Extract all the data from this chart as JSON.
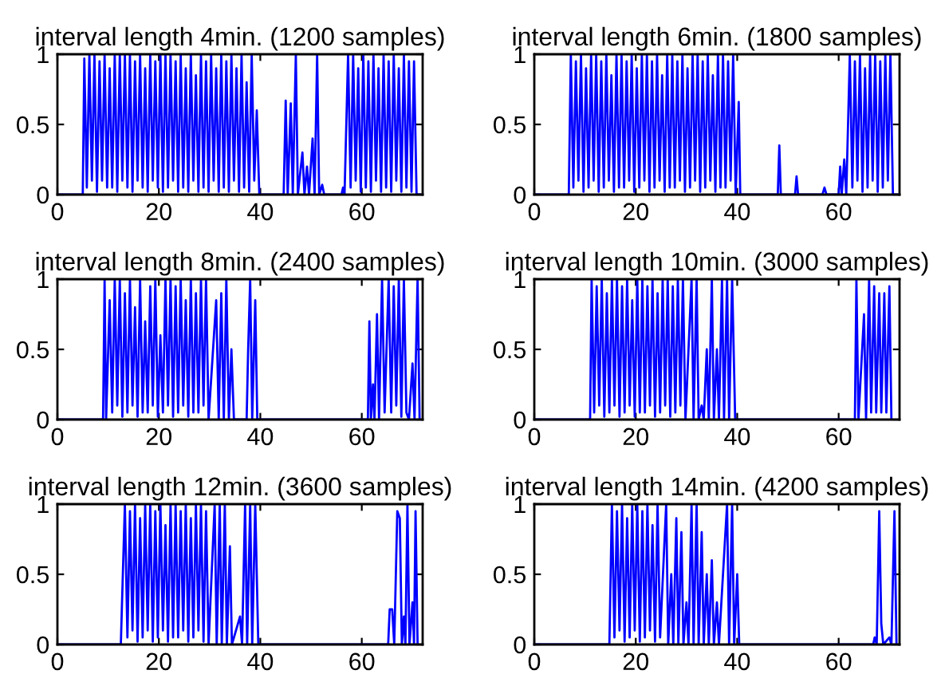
{
  "chart_data": [
    {
      "type": "line",
      "title": "interval length 4min. (1200 samples)",
      "xlim": [
        0,
        72
      ],
      "ylim": [
        0,
        1
      ],
      "xticks": [
        0,
        20,
        40,
        60
      ],
      "yticks": [
        0,
        0.5,
        1
      ],
      "grid": false,
      "legend": false,
      "series": [
        {
          "color": "#0000ff",
          "x": [
            0,
            5,
            5.3,
            5.8,
            6.3,
            6.8,
            7.3,
            7.8,
            8.3,
            8.8,
            9.3,
            9.8,
            10.3,
            10.8,
            11.3,
            11.8,
            12.3,
            12.8,
            13.3,
            13.8,
            14.3,
            14.8,
            15.3,
            15.8,
            16.3,
            16.8,
            17.3,
            17.8,
            18.3,
            18.8,
            19.3,
            19.8,
            20.3,
            20.8,
            21.3,
            21.8,
            22.3,
            22.8,
            23.3,
            23.8,
            24.3,
            24.8,
            25.3,
            25.8,
            26.3,
            26.8,
            27.3,
            27.8,
            28.3,
            28.8,
            29.3,
            29.8,
            30.3,
            30.8,
            31.3,
            31.8,
            32.3,
            32.8,
            33.3,
            33.8,
            34.3,
            34.8,
            35.3,
            35.8,
            36.3,
            36.8,
            37.3,
            37.8,
            38.3,
            38.8,
            39.3,
            39.8,
            44.6,
            45,
            45.4,
            46,
            46.4,
            47,
            47.4,
            48.3,
            48.7,
            49.2,
            49.6,
            50.3,
            50.7,
            51.2,
            51.6,
            52.2,
            52.6,
            56,
            56.3,
            56.6,
            57.3,
            57.8,
            58.3,
            58.8,
            59.3,
            59.8,
            60.3,
            60.8,
            61.3,
            61.8,
            62.3,
            62.8,
            63.3,
            63.8,
            64.3,
            64.8,
            65.3,
            65.8,
            66.3,
            66.8,
            67.3,
            67.8,
            68.3,
            68.8,
            69.3,
            69.8,
            70.3,
            70.8,
            71.5
          ],
          "values": [
            0,
            0,
            0.97,
            0.05,
            1,
            0.1,
            1,
            0.02,
            0.95,
            0.1,
            1,
            0.05,
            0.9,
            0.05,
            1,
            0.02,
            1,
            0.1,
            1,
            0.05,
            1,
            0.02,
            0.95,
            0.1,
            1,
            0.05,
            0.9,
            0.02,
            1,
            0.1,
            0.95,
            0.05,
            1,
            0.02,
            1,
            0.05,
            1,
            0.1,
            0.95,
            0.02,
            1,
            0.05,
            0.9,
            0.02,
            1,
            0.1,
            0.85,
            0.02,
            1,
            0.05,
            0.95,
            0.02,
            1,
            0.1,
            0.9,
            0.02,
            1,
            0.05,
            0.95,
            0.02,
            1,
            0.1,
            0.9,
            0.02,
            1,
            0.05,
            0.8,
            0.02,
            1,
            0.1,
            0.6,
            0,
            0,
            0.67,
            0,
            0.65,
            0,
            1,
            0,
            0.3,
            0,
            0.2,
            0,
            0.4,
            0,
            1,
            0,
            0.07,
            0,
            0,
            0.05,
            0,
            1,
            0.05,
            1,
            0.1,
            0.9,
            0.02,
            1,
            0.05,
            0.95,
            0.02,
            1,
            0.1,
            0.9,
            0.02,
            1,
            0.05,
            0.95,
            0.02,
            1,
            0.1,
            0.9,
            0.02,
            1,
            0.05,
            0.95,
            0.02,
            0.95,
            0,
            0
          ]
        }
      ]
    },
    {
      "type": "line",
      "title": "interval length 6min. (1800 samples)",
      "xlim": [
        0,
        72
      ],
      "ylim": [
        0,
        1
      ],
      "xticks": [
        0,
        20,
        40,
        60
      ],
      "yticks": [
        0,
        0.5,
        1
      ],
      "grid": false,
      "legend": false,
      "series": [
        {
          "color": "#0000ff",
          "x": [
            0,
            6.8,
            7.2,
            7.7,
            8.2,
            8.7,
            9.2,
            9.7,
            10.2,
            10.7,
            11.2,
            11.7,
            12.2,
            12.7,
            13.2,
            13.7,
            14.2,
            14.7,
            15.2,
            15.7,
            16.2,
            16.7,
            17.2,
            17.7,
            18.2,
            18.7,
            19.2,
            19.7,
            20.2,
            20.7,
            21.2,
            21.7,
            22.2,
            22.7,
            23.2,
            23.7,
            24.2,
            24.7,
            25.2,
            25.7,
            26.2,
            26.7,
            27.2,
            27.7,
            28.2,
            28.7,
            29.2,
            29.7,
            30.2,
            30.7,
            31.2,
            31.7,
            32.2,
            32.7,
            33.2,
            33.7,
            34.2,
            34.7,
            35.2,
            35.7,
            36.2,
            36.7,
            37.2,
            37.7,
            38.2,
            38.7,
            39.2,
            39.7,
            40.3,
            40.6,
            48,
            48.3,
            48.6,
            51.4,
            51.7,
            52,
            56.8,
            57.2,
            57.6,
            60,
            60.3,
            60.6,
            61.1,
            61.5,
            62.2,
            62.7,
            63.2,
            63.7,
            64.2,
            64.7,
            65.2,
            65.7,
            66.2,
            66.7,
            67.2,
            67.7,
            68.2,
            68.7,
            69.2,
            69.7,
            70.2,
            70.7,
            71.5
          ],
          "values": [
            0,
            0,
            1,
            0.05,
            0.95,
            0.1,
            1,
            0.02,
            0.9,
            0.05,
            1,
            0.1,
            1,
            0.02,
            0.95,
            0.05,
            1,
            0.1,
            0.85,
            0.02,
            1,
            0.05,
            1,
            0.05,
            0.95,
            0.1,
            1,
            0.02,
            0.9,
            0.05,
            1,
            0.1,
            1,
            0.02,
            0.95,
            0.05,
            1,
            0.1,
            0.85,
            0.02,
            1,
            0.05,
            1,
            0.05,
            0.95,
            0.1,
            1,
            0.02,
            0.9,
            0.05,
            1,
            0.1,
            1,
            0.02,
            0.95,
            0.05,
            1,
            0.1,
            0.85,
            0.02,
            1,
            0.05,
            1,
            0.05,
            0.95,
            0.1,
            1,
            0,
            0.66,
            0,
            0,
            0.35,
            0,
            0,
            0.13,
            0,
            0,
            0.05,
            0,
            0,
            0.2,
            0,
            0.25,
            0,
            1,
            0.05,
            0.95,
            0.1,
            1,
            0.02,
            0.9,
            0.05,
            1,
            0.1,
            1,
            0.02,
            0.95,
            0.05,
            1,
            0.1,
            1,
            0,
            0
          ]
        }
      ]
    },
    {
      "type": "line",
      "title": "interval length 8min. (2400 samples)",
      "xlim": [
        0,
        72
      ],
      "ylim": [
        0,
        1
      ],
      "xticks": [
        0,
        20,
        40,
        60
      ],
      "yticks": [
        0,
        0.5,
        1
      ],
      "grid": false,
      "legend": false,
      "series": [
        {
          "color": "#0000ff",
          "x": [
            0,
            9,
            9.3,
            9.6,
            10.3,
            10.8,
            11.3,
            11.8,
            12.3,
            12.8,
            13.3,
            13.8,
            14.3,
            14.8,
            15.3,
            15.8,
            16.3,
            16.8,
            17.3,
            17.8,
            18.3,
            18.8,
            19.3,
            19.8,
            20.3,
            20.8,
            21.3,
            21.8,
            22.3,
            22.8,
            23.3,
            23.8,
            24.3,
            24.8,
            25.3,
            25.8,
            26.3,
            26.8,
            27.3,
            27.8,
            28.3,
            28.8,
            29.3,
            29.8,
            31.3,
            31.8,
            32.3,
            32.8,
            33.3,
            33.8,
            34.3,
            34.8,
            37.3,
            37.6,
            38,
            38.4,
            39,
            39.4,
            61.2,
            61.5,
            61.8,
            62.2,
            62.5,
            63,
            63.4,
            64,
            64.5,
            65.3,
            65.8,
            66.3,
            66.8,
            67.3,
            67.8,
            68.3,
            68.8,
            69.3,
            70,
            70.4,
            71,
            71.4
          ],
          "values": [
            0,
            0,
            1,
            0,
            0.85,
            0.05,
            1,
            0.1,
            1,
            0.02,
            0.9,
            0.05,
            1,
            0.1,
            0.8,
            0.02,
            1,
            0.05,
            0.7,
            0.05,
            0.95,
            0.1,
            1,
            0.02,
            0.6,
            0.05,
            1,
            0.1,
            1,
            0.02,
            0.95,
            0.05,
            1,
            0.1,
            0.85,
            0.02,
            1,
            0.05,
            0.9,
            0.05,
            1,
            0.1,
            1,
            0,
            0.85,
            0,
            0.9,
            0,
            1,
            0,
            0.5,
            0,
            0,
            0.5,
            1,
            0,
            0.85,
            0,
            0,
            0.7,
            0,
            0.25,
            0,
            0.75,
            0,
            1,
            0.05,
            1,
            0.05,
            0.95,
            0.1,
            1,
            0.02,
            1,
            0.05,
            0,
            0.4,
            0,
            1,
            0
          ]
        }
      ]
    },
    {
      "type": "line",
      "title": "interval length 10min. (3000 samples)",
      "xlim": [
        0,
        72
      ],
      "ylim": [
        0,
        1
      ],
      "xticks": [
        0,
        20,
        40,
        60
      ],
      "yticks": [
        0,
        0.5,
        1
      ],
      "grid": false,
      "legend": false,
      "series": [
        {
          "color": "#0000ff",
          "x": [
            0,
            11,
            11.3,
            11.8,
            12.3,
            12.8,
            13.3,
            13.8,
            14.3,
            14.8,
            15.3,
            15.8,
            16.3,
            16.8,
            17.3,
            17.8,
            18.3,
            18.8,
            19.3,
            19.8,
            20.3,
            20.8,
            21.3,
            21.8,
            22.3,
            22.8,
            23.3,
            23.8,
            24.3,
            24.8,
            25.3,
            25.8,
            26.3,
            26.8,
            27.3,
            27.8,
            28.3,
            28.8,
            29.3,
            29.8,
            31,
            31.4,
            32,
            32.4,
            33,
            33.4,
            34,
            34.4,
            35,
            35.4,
            36,
            36.4,
            37,
            37.4,
            38,
            38.4,
            39,
            39.6,
            63.2,
            63.5,
            63.9,
            65,
            65.4,
            66,
            66.4,
            67,
            67.4,
            68,
            68.4,
            69,
            69.4,
            70,
            70.4
          ],
          "values": [
            0,
            0,
            1,
            0.05,
            0.95,
            0.1,
            1,
            0.02,
            0.9,
            0.05,
            1,
            0.1,
            1,
            0.02,
            0.95,
            0.05,
            1,
            0.1,
            0.85,
            0.02,
            1,
            0.05,
            1,
            0.05,
            0.95,
            0.1,
            1,
            0.02,
            0.9,
            0.05,
            1,
            0.1,
            1,
            0.02,
            0.95,
            0.05,
            1,
            0.1,
            1,
            0,
            1,
            0,
            1,
            0,
            0.1,
            0,
            0.5,
            0,
            1,
            0,
            0.5,
            0,
            1,
            0,
            1,
            0,
            1,
            0,
            0,
            1,
            0,
            0.75,
            0,
            1,
            0.05,
            0.95,
            0.05,
            0.9,
            0.05,
            0.9,
            0.05,
            0.95,
            0
          ]
        }
      ]
    },
    {
      "type": "line",
      "title": "interval length 12min. (3600 samples)",
      "xlim": [
        0,
        72
      ],
      "ylim": [
        0,
        1
      ],
      "xticks": [
        0,
        20,
        40,
        60
      ],
      "yticks": [
        0,
        0.5,
        1
      ],
      "grid": false,
      "legend": false,
      "series": [
        {
          "color": "#0000ff",
          "x": [
            0,
            12.5,
            13.3,
            13.8,
            14.3,
            14.8,
            15.3,
            15.8,
            16.3,
            16.8,
            17.3,
            17.8,
            18.3,
            18.8,
            19.3,
            19.8,
            20.3,
            20.8,
            21.3,
            21.8,
            22.3,
            22.8,
            23.3,
            23.8,
            24.3,
            24.8,
            25.3,
            25.8,
            26.3,
            26.8,
            27.3,
            27.8,
            28.3,
            28.8,
            29.3,
            29.8,
            31,
            31.4,
            32,
            32.4,
            33,
            33.4,
            34,
            34.4,
            36,
            36.4,
            37,
            37.4,
            38,
            38.4,
            39,
            39.6,
            65.2,
            65.5,
            66,
            66.4,
            67,
            67.5,
            67.9,
            68.3,
            68.6,
            69,
            69.4,
            70,
            70.3,
            70.6,
            71
          ],
          "values": [
            0,
            0,
            1,
            0.05,
            0.95,
            0.1,
            1,
            0.02,
            0.9,
            0.05,
            1,
            0.1,
            1,
            0.02,
            0.95,
            0.05,
            1,
            0.1,
            0.85,
            0.02,
            1,
            0.05,
            1,
            0.05,
            0.95,
            0.1,
            1,
            0.02,
            0.9,
            0.05,
            1,
            0.1,
            1,
            0.02,
            0.95,
            0,
            1,
            0,
            1,
            0,
            1,
            0,
            0.7,
            0,
            0.2,
            0,
            1,
            0,
            1,
            0,
            1,
            0,
            0,
            0.25,
            0.25,
            0,
            0.95,
            0.9,
            0,
            0.2,
            0,
            1,
            0,
            0.3,
            0,
            0.95,
            0
          ]
        }
      ]
    },
    {
      "type": "line",
      "title": "interval length 14min. (4200 samples)",
      "xlim": [
        0,
        72
      ],
      "ylim": [
        0,
        1
      ],
      "xticks": [
        0,
        20,
        40,
        60
      ],
      "yticks": [
        0,
        0.5,
        1
      ],
      "grid": false,
      "legend": false,
      "series": [
        {
          "color": "#0000ff",
          "x": [
            0,
            14.8,
            15.3,
            15.8,
            16.3,
            16.8,
            17.3,
            17.8,
            18.3,
            18.8,
            19.3,
            19.8,
            20.3,
            20.8,
            21.3,
            21.8,
            22.3,
            22.8,
            23.3,
            23.8,
            24.3,
            24.8,
            26,
            26.4,
            27,
            27.4,
            28,
            28.4,
            29,
            29.4,
            30,
            30.4,
            31,
            31.4,
            32,
            32.4,
            33,
            33.4,
            34,
            34.4,
            35,
            35.4,
            36,
            36.4,
            38,
            38.4,
            39,
            39.4,
            40,
            40.4,
            66.8,
            67.1,
            67.5,
            68,
            68.4,
            68.8,
            70,
            70.4,
            71,
            71.4
          ],
          "values": [
            0,
            0,
            1,
            0.05,
            0.95,
            0.1,
            1,
            0.02,
            0.9,
            0.05,
            1,
            0.1,
            1,
            0.02,
            0.95,
            0.05,
            1,
            0.1,
            0.85,
            0.02,
            1,
            0.05,
            1,
            0,
            0.5,
            0,
            0.9,
            0,
            0.8,
            0,
            0.3,
            0,
            1,
            0,
            1,
            0,
            0.8,
            0,
            0.5,
            0,
            0.6,
            0,
            0.3,
            0,
            1,
            0,
            1,
            0,
            0.5,
            0,
            0,
            0.05,
            0,
            0.95,
            0.15,
            0,
            0.05,
            0,
            0.95,
            0
          ]
        }
      ]
    }
  ]
}
